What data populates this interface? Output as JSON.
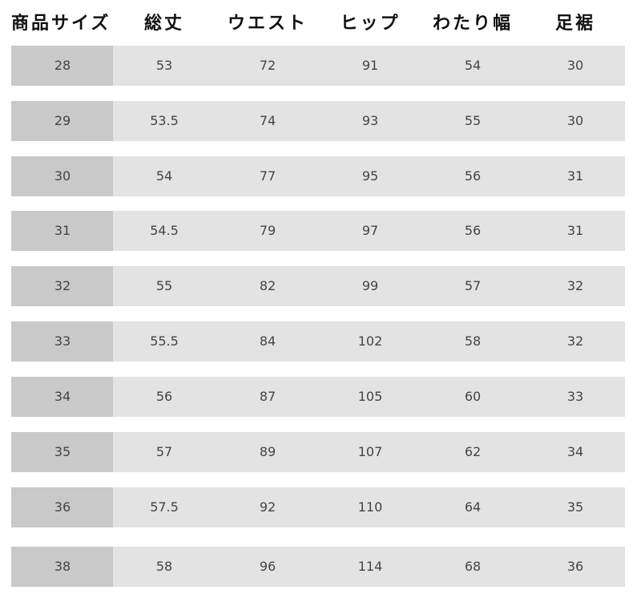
{
  "table": {
    "header": [
      "商品サイズ",
      "総丈",
      "ウエスト",
      "ヒップ",
      "わたり幅",
      "足裾"
    ],
    "rows": [
      [
        "28",
        "53",
        "72",
        "91",
        "54",
        "30"
      ],
      [
        "29",
        "53.5",
        "74",
        "93",
        "55",
        "30"
      ],
      [
        "30",
        "54",
        "77",
        "95",
        "56",
        "31"
      ],
      [
        "31",
        "54.5",
        "79",
        "97",
        "56",
        "31"
      ],
      [
        "32",
        "55",
        "82",
        "99",
        "57",
        "32"
      ],
      [
        "33",
        "55.5",
        "84",
        "102",
        "58",
        "32"
      ],
      [
        "34",
        "56",
        "87",
        "105",
        "60",
        "33"
      ],
      [
        "35",
        "57",
        "89",
        "107",
        "62",
        "34"
      ],
      [
        "36",
        "57.5",
        "92",
        "110",
        "64",
        "35"
      ],
      [
        "38",
        "58",
        "96",
        "114",
        "68",
        "36"
      ]
    ]
  }
}
